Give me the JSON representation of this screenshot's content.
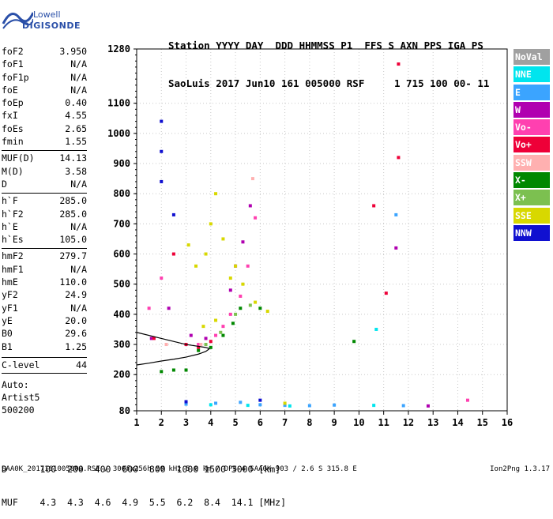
{
  "logo": {
    "line1": "Lowell",
    "line2": "DIGISONDE"
  },
  "header": {
    "labels": "Station YYYY DAY  DDD HHMMSS P1  FFS S AXN PPS IGA PS",
    "values": "SaoLuis 2017 Jun10 161 005000 RSF     1 715 100 00- 11"
  },
  "params": [
    {
      "label": "foF2",
      "value": "3.950"
    },
    {
      "label": "foF1",
      "value": "N/A"
    },
    {
      "label": "foF1p",
      "value": "N/A"
    },
    {
      "label": "foE",
      "value": "N/A"
    },
    {
      "label": "foEp",
      "value": "0.40"
    },
    {
      "label": "fxI",
      "value": "4.55"
    },
    {
      "label": "foEs",
      "value": "2.65"
    },
    {
      "label": "fmin",
      "value": "1.55"
    },
    {
      "label": "MUF(D)",
      "value": "14.13"
    },
    {
      "label": "M(D)",
      "value": "3.58"
    },
    {
      "label": "D",
      "value": "N/A"
    },
    {
      "label": "h`F",
      "value": "285.0"
    },
    {
      "label": "h`F2",
      "value": "285.0"
    },
    {
      "label": "h`E",
      "value": "N/A"
    },
    {
      "label": "h`Es",
      "value": "105.0"
    },
    {
      "label": "hmF2",
      "value": "279.7"
    },
    {
      "label": "hmF1",
      "value": "N/A"
    },
    {
      "label": "hmE",
      "value": "110.0"
    },
    {
      "label": "yF2",
      "value": "24.9"
    },
    {
      "label": "yF1",
      "value": "N/A"
    },
    {
      "label": "yE",
      "value": "20.0"
    },
    {
      "label": "B0",
      "value": "29.6"
    },
    {
      "label": "B1",
      "value": "1.25"
    },
    {
      "label": "C-level",
      "value": "44"
    }
  ],
  "auto": {
    "line1": "Auto:",
    "line2": "Artist5",
    "line3": "500200"
  },
  "legend": [
    {
      "name": "NoVal",
      "color": "#a0a0a0"
    },
    {
      "name": "NNE",
      "color": "#00e5ee"
    },
    {
      "name": "E",
      "color": "#3ba4ff"
    },
    {
      "name": "W",
      "color": "#b000b0"
    },
    {
      "name": "Vo-",
      "color": "#ff40b0"
    },
    {
      "name": "Vo+",
      "color": "#ee0038"
    },
    {
      "name": "SSW",
      "color": "#ffb0b0"
    },
    {
      "name": "X-",
      "color": "#008800"
    },
    {
      "name": "X+",
      "color": "#7cc050"
    },
    {
      "name": "SSE",
      "color": "#d8d800"
    },
    {
      "name": "NNW",
      "color": "#1010d0"
    }
  ],
  "chart_data": {
    "type": "scatter",
    "xlabel": "",
    "ylabel": "",
    "xlim": [
      1,
      16
    ],
    "ylim": [
      80,
      1280
    ],
    "x_ticks": [
      "1",
      "2",
      "3",
      "4",
      "5",
      "6",
      "7",
      "8",
      "9",
      "10",
      "11",
      "12",
      "13",
      "14",
      "15",
      "16"
    ],
    "y_ticks": [
      {
        "value": 80,
        "label": "80"
      },
      {
        "value": 200,
        "label": "200"
      },
      {
        "value": 300,
        "label": "300"
      },
      {
        "value": 400,
        "label": "400"
      },
      {
        "value": 500,
        "label": "500"
      },
      {
        "value": 600,
        "label": "600"
      },
      {
        "value": 700,
        "label": "700"
      },
      {
        "value": 800,
        "label": "800"
      },
      {
        "value": 900,
        "label": "900"
      },
      {
        "value": 1000,
        "label": "1000"
      },
      {
        "value": 1100,
        "label": "1100"
      },
      {
        "value": 1280,
        "label": "1280"
      }
    ],
    "grid": true,
    "series": [
      {
        "name": "NNE",
        "color": "#00e5ee",
        "points": [
          [
            4.0,
            100
          ],
          [
            5.5,
            98
          ],
          [
            7.2,
            96
          ],
          [
            10.6,
            98
          ],
          [
            10.7,
            350
          ]
        ]
      },
      {
        "name": "E",
        "color": "#3ba4ff",
        "points": [
          [
            3.0,
            102
          ],
          [
            4.2,
            105
          ],
          [
            5.2,
            108
          ],
          [
            6.0,
            100
          ],
          [
            7.0,
            98
          ],
          [
            8.0,
            97
          ],
          [
            9.0,
            99
          ],
          [
            11.5,
            730
          ],
          [
            11.8,
            97
          ]
        ]
      },
      {
        "name": "W",
        "color": "#b000b0",
        "points": [
          [
            1.6,
            320
          ],
          [
            2.3,
            420
          ],
          [
            3.2,
            330
          ],
          [
            3.8,
            320
          ],
          [
            4.8,
            480
          ],
          [
            5.0,
            560
          ],
          [
            5.3,
            640
          ],
          [
            5.6,
            760
          ],
          [
            11.5,
            620
          ],
          [
            12.8,
            96
          ]
        ]
      },
      {
        "name": "Vo-",
        "color": "#ff40b0",
        "points": [
          [
            1.5,
            420
          ],
          [
            2.0,
            520
          ],
          [
            3.5,
            300
          ],
          [
            4.2,
            330
          ],
          [
            4.5,
            360
          ],
          [
            4.8,
            400
          ],
          [
            5.2,
            460
          ],
          [
            5.5,
            560
          ],
          [
            5.8,
            720
          ],
          [
            14.4,
            115
          ]
        ]
      },
      {
        "name": "Vo+",
        "color": "#ee0038",
        "points": [
          [
            1.7,
            320
          ],
          [
            2.5,
            600
          ],
          [
            3.0,
            300
          ],
          [
            3.5,
            290
          ],
          [
            4.0,
            310
          ],
          [
            11.1,
            470
          ],
          [
            11.6,
            920
          ],
          [
            10.6,
            760
          ],
          [
            11.6,
            1230
          ]
        ]
      },
      {
        "name": "SSW",
        "color": "#ffb0b0",
        "points": [
          [
            2.2,
            300
          ],
          [
            3.6,
            300
          ],
          [
            5.7,
            850
          ]
        ]
      },
      {
        "name": "X-",
        "color": "#008800",
        "points": [
          [
            2.0,
            210
          ],
          [
            2.5,
            215
          ],
          [
            3.0,
            215
          ],
          [
            3.5,
            280
          ],
          [
            4.0,
            290
          ],
          [
            4.5,
            330
          ],
          [
            4.9,
            370
          ],
          [
            5.2,
            420
          ],
          [
            6.0,
            420
          ],
          [
            9.8,
            310
          ]
        ]
      },
      {
        "name": "X+",
        "color": "#7cc050",
        "points": [
          [
            3.8,
            300
          ],
          [
            4.4,
            340
          ],
          [
            5.0,
            400
          ],
          [
            5.6,
            430
          ]
        ]
      },
      {
        "name": "SSE",
        "color": "#d8d800",
        "points": [
          [
            3.1,
            630
          ],
          [
            3.4,
            560
          ],
          [
            3.8,
            600
          ],
          [
            4.0,
            700
          ],
          [
            4.2,
            800
          ],
          [
            4.5,
            650
          ],
          [
            4.8,
            520
          ],
          [
            5.0,
            560
          ],
          [
            5.3,
            500
          ],
          [
            5.8,
            440
          ],
          [
            6.3,
            410
          ],
          [
            3.7,
            360
          ],
          [
            4.2,
            380
          ],
          [
            7.0,
            105
          ]
        ]
      },
      {
        "name": "NNW",
        "color": "#1010d0",
        "points": [
          [
            2.0,
            840
          ],
          [
            2.0,
            940
          ],
          [
            2.0,
            1040
          ],
          [
            2.5,
            730
          ],
          [
            3.0,
            110
          ],
          [
            6.0,
            115
          ]
        ]
      }
    ],
    "profile": {
      "label": "electron density profile",
      "points": [
        [
          1.0,
          232
        ],
        [
          1.5,
          238
        ],
        [
          2.0,
          245
        ],
        [
          2.5,
          251
        ],
        [
          3.0,
          258
        ],
        [
          3.5,
          268
        ],
        [
          3.8,
          277
        ],
        [
          3.95,
          286
        ]
      ]
    },
    "profile_top": {
      "points": [
        [
          1.0,
          340
        ],
        [
          2.0,
          320
        ],
        [
          3.0,
          300
        ],
        [
          3.8,
          290
        ],
        [
          3.95,
          286
        ]
      ]
    }
  },
  "dtable": {
    "line1": "D      100  200  400  600  800  1000 1500 3000 [km]",
    "line2": "MUF    4.3  4.3  4.6  4.9  5.5  6.2  8.4  14.1 [MHz]"
  },
  "footer": "SAA0K_2017161005000.RSF / 300fx256h 50 kHz 5.0 km / DPS-4 SAA0K 903 / 2.6 S 315.8 E",
  "version": "Ion2Png 1.3.17"
}
